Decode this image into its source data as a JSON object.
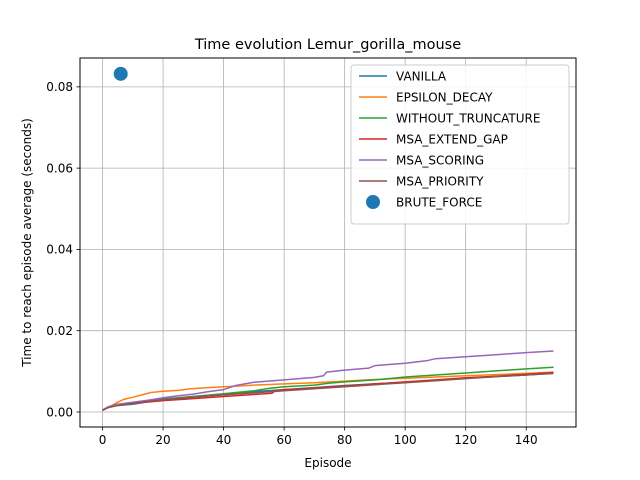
{
  "chart_data": {
    "type": "line",
    "title": "Time evolution Lemur_gorilla_mouse",
    "xlabel": "Episode",
    "ylabel": "Time to reach episode average (seconds)",
    "xlim": [
      -7.45,
      156.45
    ],
    "ylim": [
      -0.0037,
      0.0871
    ],
    "xticks": [
      0,
      20,
      40,
      60,
      80,
      100,
      120,
      140
    ],
    "yticks": [
      0.0,
      0.02,
      0.04,
      0.06,
      0.08
    ],
    "ytick_labels": [
      "0.00",
      "0.02",
      "0.04",
      "0.06",
      "0.08"
    ],
    "grid": true,
    "legend_position": "upper right",
    "series": [
      {
        "name": "VANILLA",
        "color": "#1f77b4",
        "kind": "line",
        "x": [
          0,
          1,
          2,
          5,
          10,
          15,
          20,
          30,
          40,
          50,
          60,
          70,
          80,
          90,
          100,
          110,
          120,
          130,
          140,
          149
        ],
        "y": [
          0.0004,
          0.0009,
          0.0013,
          0.0016,
          0.0019,
          0.0025,
          0.0032,
          0.0038,
          0.0044,
          0.005,
          0.0055,
          0.006,
          0.0065,
          0.0069,
          0.0073,
          0.0078,
          0.0083,
          0.0087,
          0.0091,
          0.0095
        ]
      },
      {
        "name": "EPSILON_DECAY",
        "color": "#ff7f0e",
        "kind": "line",
        "x": [
          0,
          1,
          3,
          5,
          7,
          10,
          13,
          16,
          20,
          25,
          29,
          35,
          40,
          45,
          50,
          60,
          70,
          80,
          90,
          100,
          110,
          120,
          130,
          140,
          149
        ],
        "y": [
          0.0003,
          0.0009,
          0.0016,
          0.0024,
          0.0031,
          0.0036,
          0.0042,
          0.0048,
          0.0051,
          0.0053,
          0.0057,
          0.006,
          0.0062,
          0.0064,
          0.0066,
          0.0069,
          0.0072,
          0.0076,
          0.008,
          0.0083,
          0.0086,
          0.0089,
          0.0092,
          0.0095,
          0.0098
        ]
      },
      {
        "name": "WITHOUT_TRUNCATURE",
        "color": "#2ca02c",
        "kind": "line",
        "x": [
          0,
          2,
          5,
          10,
          15,
          20,
          30,
          40,
          50,
          55,
          60,
          70,
          75,
          80,
          90,
          100,
          110,
          120,
          130,
          140,
          149
        ],
        "y": [
          0.0004,
          0.0012,
          0.0017,
          0.0022,
          0.0027,
          0.0031,
          0.0038,
          0.0045,
          0.0052,
          0.0058,
          0.0062,
          0.0066,
          0.0071,
          0.0074,
          0.0079,
          0.0086,
          0.0091,
          0.0096,
          0.0101,
          0.0106,
          0.011
        ]
      },
      {
        "name": "MSA_EXTEND_GAP",
        "color": "#d62728",
        "kind": "line",
        "x": [
          0,
          2,
          5,
          10,
          16,
          20,
          30,
          40,
          50,
          56,
          57,
          60,
          70,
          80,
          90,
          100,
          110,
          120,
          130,
          140,
          149
        ],
        "y": [
          0.0005,
          0.0012,
          0.0017,
          0.0021,
          0.0025,
          0.0028,
          0.0033,
          0.0038,
          0.0043,
          0.0046,
          0.0052,
          0.0055,
          0.0059,
          0.0064,
          0.0069,
          0.0074,
          0.0079,
          0.0084,
          0.0088,
          0.0093,
          0.0097
        ]
      },
      {
        "name": "MSA_SCORING",
        "color": "#9467bd",
        "kind": "line",
        "x": [
          0,
          2,
          5,
          10,
          15,
          20,
          25,
          30,
          35,
          40,
          44,
          50,
          60,
          70,
          73,
          74,
          80,
          88,
          90,
          100,
          107,
          110,
          120,
          130,
          140,
          149
        ],
        "y": [
          0.0004,
          0.0013,
          0.0019,
          0.0024,
          0.0029,
          0.0035,
          0.004,
          0.0044,
          0.005,
          0.0055,
          0.0065,
          0.0073,
          0.0079,
          0.0085,
          0.0089,
          0.0098,
          0.0103,
          0.0108,
          0.0114,
          0.012,
          0.0126,
          0.0131,
          0.0136,
          0.0141,
          0.0146,
          0.015
        ]
      },
      {
        "name": "MSA_PRIORITY",
        "color": "#8c564b",
        "kind": "line",
        "x": [
          0,
          2,
          5,
          10,
          15,
          20,
          30,
          40,
          50,
          60,
          70,
          80,
          90,
          100,
          110,
          120,
          130,
          140,
          149
        ],
        "y": [
          0.0004,
          0.0011,
          0.0016,
          0.0021,
          0.0026,
          0.003,
          0.0036,
          0.0042,
          0.0047,
          0.0052,
          0.0057,
          0.0062,
          0.0067,
          0.0072,
          0.0077,
          0.0082,
          0.0087,
          0.0091,
          0.0095
        ]
      },
      {
        "name": "BRUTE_FORCE",
        "color": "#1f77b4",
        "kind": "scatter",
        "x": [
          6
        ],
        "y": [
          0.0832
        ]
      }
    ]
  }
}
